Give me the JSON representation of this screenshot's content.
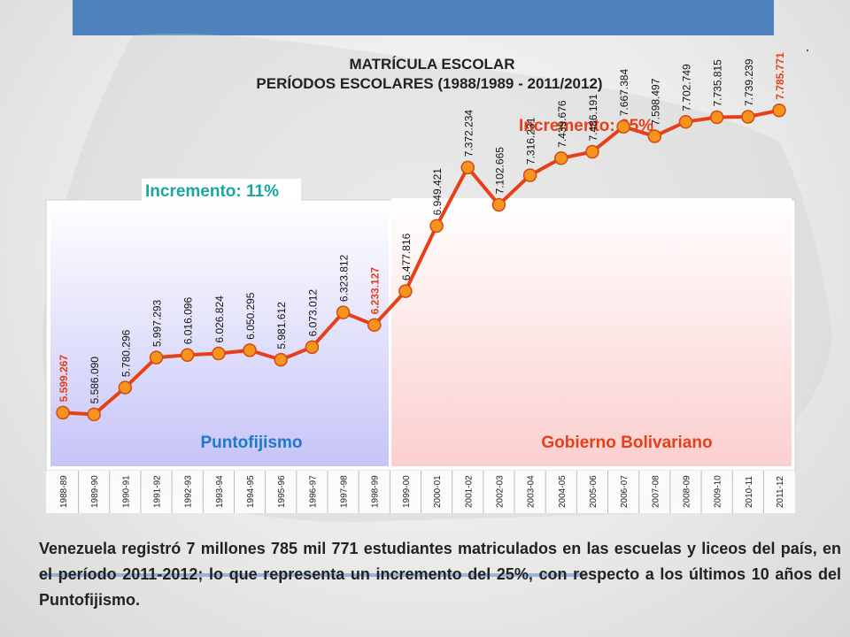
{
  "colors": {
    "topbar": "#4f81bd",
    "line": "#e5401a",
    "marker": "#f7941d",
    "left_panel": "#c9c7f5",
    "right_panel": "#fbd4d4",
    "left_label": "#1f78c8",
    "right_label": "#e5401a",
    "left_increment": "#1aa6a0",
    "right_increment": "#e5401a"
  },
  "chart_data": {
    "type": "line",
    "title": "MATRÍCULA ESCOLAR",
    "subtitle": "PERÍODOS ESCOLARES (1988/1989 - 2011/2012)",
    "categories": [
      "1988-89",
      "1989-90",
      "1990-91",
      "1991-92",
      "1992-93",
      "1993-94",
      "1994-95",
      "1995-96",
      "1996-97",
      "1997-98",
      "1998-99",
      "1999-00",
      "2000-01",
      "2001-02",
      "2002-03",
      "2003-04",
      "2004-05",
      "2005-06",
      "2006-07",
      "2007-08",
      "2008-09",
      "2009-10",
      "2010-11",
      "2011-12"
    ],
    "values": [
      5599267,
      5586090,
      5780296,
      5997293,
      6016096,
      6026824,
      6050295,
      5981612,
      6073012,
      6323812,
      6233127,
      6477816,
      6949421,
      7372234,
      7102665,
      7316231,
      7439676,
      7486191,
      7667384,
      7598497,
      7702749,
      7735815,
      7739239,
      7785771
    ],
    "value_labels": [
      "5.599.267",
      "5.586.090",
      "5.780.296",
      "5.997.293",
      "6.016.096",
      "6.026.824",
      "6.050.295",
      "5.981.612",
      "6.073.012",
      "6.323.812",
      "6.233.127",
      "6.477.816",
      "6.949.421",
      "7.372.234",
      "7.102.665",
      "7.316.231",
      "7.439.676",
      "7.486.191",
      "7.667.384",
      "7.598.497",
      "7.702.749",
      "7.735.815",
      "7.739.239",
      "7.785.771"
    ],
    "highlighted_indices": [
      0,
      10,
      23
    ],
    "ylim": [
      5000000,
      8200000
    ],
    "grid": false,
    "periods": [
      {
        "label": "Puntofijismo",
        "increment": "Incremento: 11%",
        "from": 0,
        "to": 10
      },
      {
        "label": "Gobierno Bolivariano",
        "increment": "Incremento: 25%",
        "from": 11,
        "to": 23
      }
    ]
  },
  "caption": "Venezuela registró 7 millones 785 mil 771 estudiantes matriculados en las escuelas y liceos del país, en el período 2011-2012; lo que representa un incremento del 25%, con respecto a los últimos 10 años del Puntofijismo."
}
